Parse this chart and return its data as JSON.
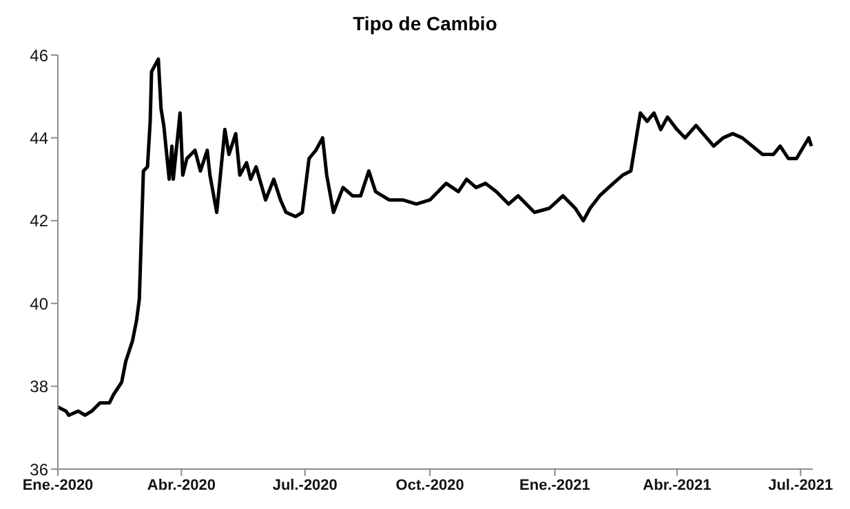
{
  "chart_data": {
    "type": "line",
    "title": "Tipo de Cambio",
    "x": [
      "2020-01-01",
      "2020-01-07",
      "2020-01-09",
      "2020-01-16",
      "2020-01-21",
      "2020-01-26",
      "2020-02-01",
      "2020-02-08",
      "2020-02-11",
      "2020-02-15",
      "2020-02-17",
      "2020-02-20",
      "2020-02-25",
      "2020-02-28",
      "2020-03-01",
      "2020-03-04",
      "2020-03-07",
      "2020-03-09",
      "2020-03-10",
      "2020-03-15",
      "2020-03-17",
      "2020-03-19",
      "2020-03-23",
      "2020-03-25",
      "2020-03-26",
      "2020-03-31",
      "2020-04-02",
      "2020-04-05",
      "2020-04-11",
      "2020-04-15",
      "2020-04-20",
      "2020-04-22",
      "2020-04-27",
      "2020-05-03",
      "2020-05-06",
      "2020-05-11",
      "2020-05-14",
      "2020-05-19",
      "2020-05-22",
      "2020-05-26",
      "2020-06-02",
      "2020-06-08",
      "2020-06-13",
      "2020-06-17",
      "2020-06-24",
      "2020-06-29",
      "2020-07-04",
      "2020-07-09",
      "2020-07-14",
      "2020-07-17",
      "2020-07-22",
      "2020-07-29",
      "2020-08-05",
      "2020-08-11",
      "2020-08-17",
      "2020-08-22",
      "2020-09-01",
      "2020-09-11",
      "2020-09-21",
      "2020-10-01",
      "2020-10-13",
      "2020-10-22",
      "2020-10-28",
      "2020-11-04",
      "2020-11-11",
      "2020-11-19",
      "2020-11-28",
      "2020-12-05",
      "2020-12-17",
      "2020-12-28",
      "2021-01-07",
      "2021-01-16",
      "2021-01-22",
      "2021-01-27",
      "2021-02-03",
      "2021-02-13",
      "2021-02-20",
      "2021-02-26",
      "2021-03-02",
      "2021-03-05",
      "2021-03-10",
      "2021-03-15",
      "2021-03-20",
      "2021-03-25",
      "2021-04-01",
      "2021-04-07",
      "2021-04-15",
      "2021-04-28",
      "2021-05-05",
      "2021-05-12",
      "2021-05-19",
      "2021-06-03",
      "2021-06-11",
      "2021-06-16",
      "2021-06-22",
      "2021-06-28",
      "2021-07-07",
      "2021-07-09"
    ],
    "series": [
      {
        "color": "#000000",
        "values": [
          37.5,
          37.4,
          37.3,
          37.4,
          37.3,
          37.4,
          37.6,
          37.6,
          37.8,
          38.0,
          38.1,
          38.6,
          39.1,
          39.6,
          40.1,
          43.2,
          43.3,
          44.4,
          45.6,
          45.9,
          44.7,
          44.3,
          43.0,
          43.8,
          43.0,
          44.6,
          43.1,
          43.5,
          43.7,
          43.2,
          43.7,
          43.1,
          42.2,
          44.2,
          43.6,
          44.1,
          43.1,
          43.4,
          43.0,
          43.3,
          42.5,
          43.0,
          42.5,
          42.2,
          42.1,
          42.2,
          43.5,
          43.7,
          44.0,
          43.1,
          42.2,
          42.8,
          42.6,
          42.6,
          43.2,
          42.7,
          42.5,
          42.5,
          42.4,
          42.5,
          42.9,
          42.7,
          43.0,
          42.8,
          42.9,
          42.7,
          42.4,
          42.6,
          42.2,
          42.3,
          42.6,
          42.3,
          42.0,
          42.3,
          42.6,
          42.9,
          43.1,
          43.2,
          44.0,
          44.6,
          44.4,
          44.6,
          44.2,
          44.5,
          44.2,
          44.0,
          44.3,
          43.8,
          44.0,
          44.1,
          44.0,
          43.6,
          43.6,
          43.8,
          43.5,
          43.5,
          44.0,
          43.8
        ]
      }
    ],
    "xlim": [
      "2020-01-01",
      "2021-07-10"
    ],
    "xticks": [
      {
        "value": "2020-01-01",
        "label": "Ene.-2020"
      },
      {
        "value": "2020-04-01",
        "label": "Abr.-2020"
      },
      {
        "value": "2020-07-01",
        "label": "Jul.-2020"
      },
      {
        "value": "2020-10-01",
        "label": "Oct.-2020"
      },
      {
        "value": "2021-01-01",
        "label": "Ene.-2021"
      },
      {
        "value": "2021-04-01",
        "label": "Abr.-2021"
      },
      {
        "value": "2021-07-01",
        "label": "Jul.-2021"
      }
    ],
    "ylim": [
      36,
      46
    ],
    "yticks": [
      36,
      38,
      40,
      42,
      44,
      46
    ],
    "grid": false,
    "legend": false,
    "marker": "none",
    "line_style": "solid"
  }
}
